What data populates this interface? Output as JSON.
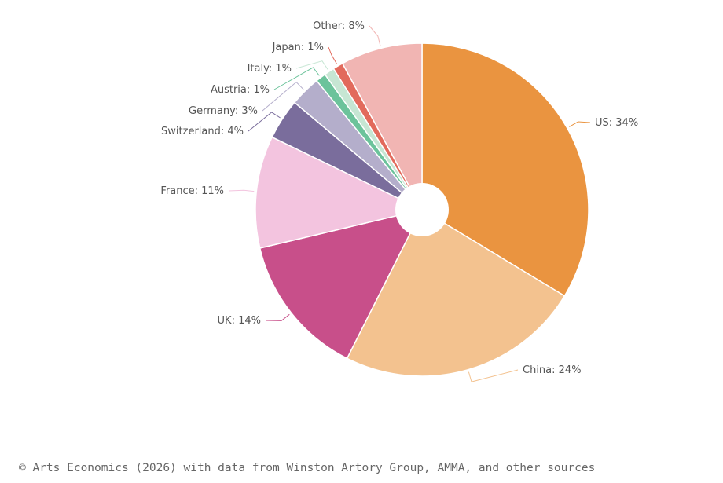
{
  "chart_data": {
    "type": "pie",
    "title": "",
    "donut": true,
    "start": "top, clockwise",
    "slices": [
      {
        "label": "US",
        "value": 34,
        "display": "US: 34%",
        "color": "#EA9440"
      },
      {
        "label": "China",
        "value": 24,
        "display": "China: 24%",
        "color": "#F3C28F"
      },
      {
        "label": "UK",
        "value": 14,
        "display": "UK: 14%",
        "color": "#C84F8A"
      },
      {
        "label": "France",
        "value": 11,
        "display": "France: 11%",
        "color": "#F3C4DF"
      },
      {
        "label": "Switzerland",
        "value": 4,
        "display": "Switzerland: 4%",
        "color": "#7A6D9C"
      },
      {
        "label": "Germany",
        "value": 3,
        "display": "Germany: 3%",
        "color": "#B4AECB"
      },
      {
        "label": "Austria",
        "value": 1,
        "display": "Austria: 1%",
        "color": "#6CC39B"
      },
      {
        "label": "Italy",
        "value": 1,
        "display": "Italy: 1%",
        "color": "#C6E6D3"
      },
      {
        "label": "Japan",
        "value": 1,
        "display": "Japan: 1%",
        "color": "#E26A5C"
      },
      {
        "label": "Other",
        "value": 8,
        "display": "Other: 8%",
        "color": "#F1B5B3"
      }
    ]
  },
  "source": "© Arts Economics (2026) with data from Winston Artory Group, AMMA, and other sources"
}
